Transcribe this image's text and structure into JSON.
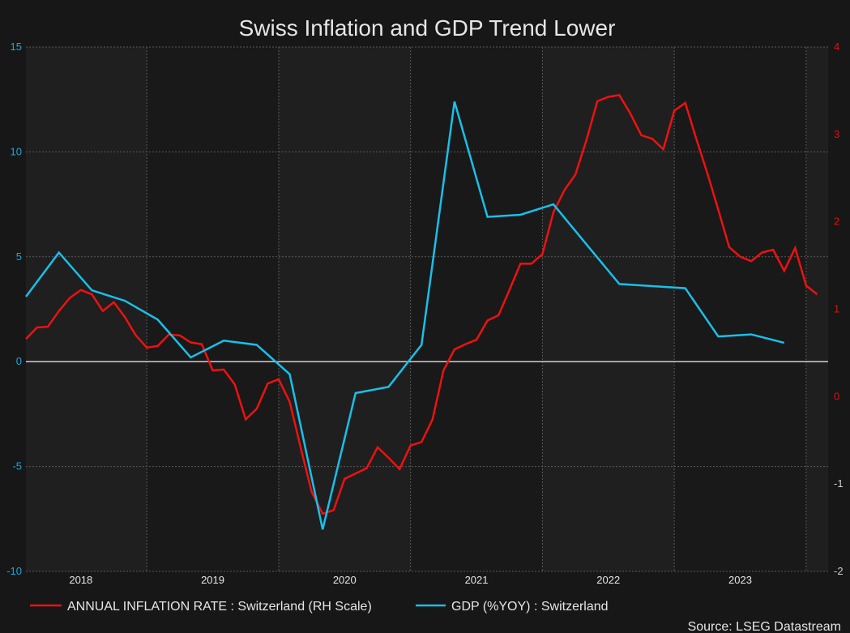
{
  "chart_data": {
    "type": "line",
    "title": "Swiss Inflation and GDP Trend Lower",
    "source": "Source: LSEG Datastream",
    "legend_position": "bottom",
    "grid": true,
    "x_range": [
      "2018-02",
      "2024-03"
    ],
    "x_ticks": [
      "2018",
      "2019",
      "2020",
      "2021",
      "2022",
      "2023"
    ],
    "left_axis": {
      "ylim": [
        -10,
        15
      ],
      "ticks": [
        "15",
        "10",
        "5",
        "0",
        "-5",
        "-10"
      ],
      "color": "#1aa8e0"
    },
    "right_axis": {
      "ylim": [
        -2,
        4
      ],
      "ticks": [
        "4",
        "3",
        "2",
        "1",
        "0",
        "-1",
        "-2"
      ],
      "color": "#e01010"
    },
    "series": [
      {
        "name": "ANNUAL INFLATION RATE : Switzerland (RH Scale)",
        "axis": "right",
        "color": "#ee1111",
        "x": [
          "2018-02",
          "2018-03",
          "2018-04",
          "2018-05",
          "2018-06",
          "2018-07",
          "2018-08",
          "2018-09",
          "2018-10",
          "2018-11",
          "2018-12",
          "2019-01",
          "2019-02",
          "2019-03",
          "2019-04",
          "2019-05",
          "2019-06",
          "2019-07",
          "2019-08",
          "2019-09",
          "2019-10",
          "2019-11",
          "2019-12",
          "2020-01",
          "2020-02",
          "2020-03",
          "2020-04",
          "2020-05",
          "2020-06",
          "2020-07",
          "2020-08",
          "2020-09",
          "2020-10",
          "2020-11",
          "2020-12",
          "2021-01",
          "2021-02",
          "2021-03",
          "2021-04",
          "2021-05",
          "2021-06",
          "2021-07",
          "2021-08",
          "2021-09",
          "2021-10",
          "2021-11",
          "2021-12",
          "2022-01",
          "2022-02",
          "2022-03",
          "2022-04",
          "2022-05",
          "2022-06",
          "2022-07",
          "2022-08",
          "2022-09",
          "2022-10",
          "2022-11",
          "2022-12",
          "2023-01",
          "2023-02",
          "2023-03",
          "2023-04",
          "2023-05",
          "2023-06",
          "2023-07",
          "2023-08",
          "2023-09",
          "2023-10",
          "2023-11",
          "2023-12",
          "2024-01",
          "2024-02"
        ],
        "values": [
          0.66,
          0.79,
          0.8,
          0.98,
          1.13,
          1.22,
          1.17,
          0.98,
          1.08,
          0.91,
          0.7,
          0.56,
          0.58,
          0.71,
          0.7,
          0.62,
          0.6,
          0.3,
          0.31,
          0.14,
          -0.26,
          -0.14,
          0.15,
          0.2,
          -0.06,
          -0.58,
          -1.09,
          -1.34,
          -1.3,
          -0.94,
          -0.88,
          -0.82,
          -0.58,
          -0.7,
          -0.83,
          -0.56,
          -0.52,
          -0.26,
          0.3,
          0.54,
          0.6,
          0.65,
          0.87,
          0.93,
          1.22,
          1.52,
          1.52,
          1.63,
          2.11,
          2.36,
          2.54,
          2.93,
          3.38,
          3.43,
          3.45,
          3.24,
          2.99,
          2.95,
          2.83,
          3.27,
          3.36,
          2.95,
          2.56,
          2.14,
          1.71,
          1.6,
          1.55,
          1.65,
          1.68,
          1.44,
          1.7,
          1.27,
          1.17
        ]
      },
      {
        "name": "GDP (%YOY) : Switzerland",
        "axis": "left",
        "color": "#18c0ea",
        "x": [
          "2018-02",
          "2018-05",
          "2018-08",
          "2018-11",
          "2019-02",
          "2019-05",
          "2019-08",
          "2019-11",
          "2020-02",
          "2020-05",
          "2020-08",
          "2020-11",
          "2021-02",
          "2021-05",
          "2021-08",
          "2021-11",
          "2022-02",
          "2022-05",
          "2022-08",
          "2022-11",
          "2023-02",
          "2023-05",
          "2023-08",
          "2023-11"
        ],
        "values": [
          3.1,
          5.2,
          3.4,
          2.9,
          2.0,
          0.2,
          1.0,
          0.8,
          -0.6,
          -8.0,
          -1.5,
          -1.2,
          0.8,
          12.4,
          6.9,
          7.0,
          7.5,
          5.6,
          3.7,
          3.6,
          3.5,
          1.2,
          1.3,
          0.9
        ]
      }
    ]
  }
}
